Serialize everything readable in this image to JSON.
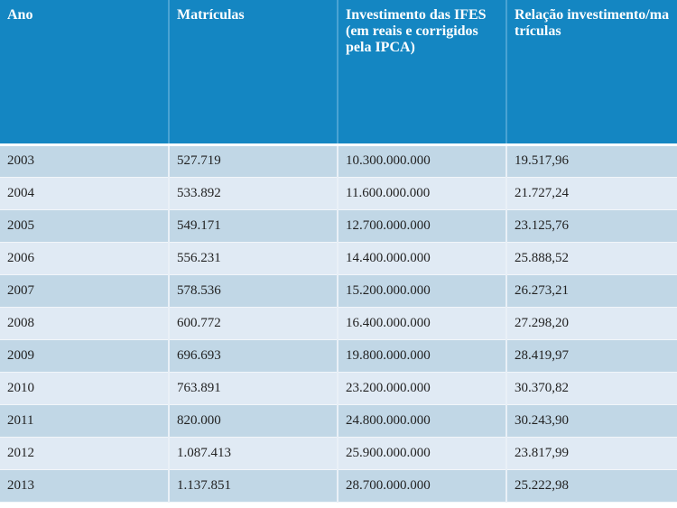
{
  "table": {
    "headers": [
      "Ano",
      "Matrículas",
      "Investimento das IFES (em reais e corrigidos pela IPCA)",
      "Relação investimento/matrículas"
    ],
    "rows": [
      [
        "2003",
        "527.719",
        "10.300.000.000",
        "19.517,96"
      ],
      [
        "2004",
        "533.892",
        "11.600.000.000",
        "21.727,24"
      ],
      [
        "2005",
        "549.171",
        "12.700.000.000",
        "23.125,76"
      ],
      [
        "2006",
        "556.231",
        "14.400.000.000",
        "25.888,52"
      ],
      [
        "2007",
        "578.536",
        "15.200.000.000",
        "26.273,21"
      ],
      [
        "2008",
        "600.772",
        "16.400.000.000",
        "27.298,20"
      ],
      [
        "2009",
        "696.693",
        "19.800.000.000",
        "28.419,97"
      ],
      [
        "2010",
        "763.891",
        "23.200.000.000",
        "30.370,82"
      ],
      [
        "2011",
        "820.000",
        "24.800.000.000",
        "30.243,90"
      ],
      [
        "2012",
        "1.087.413",
        "25.900.000.000",
        "23.817,99"
      ],
      [
        "2013",
        "1.137.851",
        "28.700.000.000",
        "25.222,98"
      ]
    ]
  },
  "colors": {
    "header_bg": "#1486c2",
    "row_dark": "#c1d7e6",
    "row_light": "#e0eaf4"
  }
}
